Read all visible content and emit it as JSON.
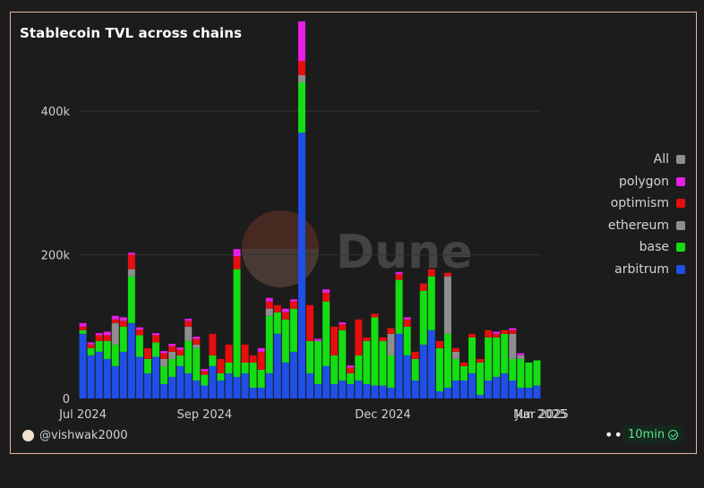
{
  "title": "Stablecoin TVL across chains",
  "author": "@vishwak2000",
  "refresh_label": "10min",
  "more_label": "•••",
  "watermark": "Dune",
  "chart_data": {
    "type": "bar",
    "stacked": true,
    "title": "Stablecoin TVL across chains",
    "ylim": [
      0,
      460000
    ],
    "y_ticks": [
      0,
      200000,
      400000
    ],
    "y_tick_labels": [
      "0",
      "200k",
      "400k"
    ],
    "x_tick_labels": [
      "Jul 2024",
      "Sep 2024",
      "Dec 2024",
      "Mar 2025",
      "Jun 2025"
    ],
    "x_tick_indices": [
      0,
      15,
      37,
      59,
      77
    ],
    "legend_position": "right",
    "legend": [
      "All",
      "polygon",
      "optimism",
      "ethereum",
      "base",
      "arbitrum"
    ],
    "colors": {
      "All": "#8e8e8e",
      "polygon": "#e61ee6",
      "optimism": "#e60e0e",
      "ethereum": "#8e8e8e",
      "base": "#14dd14",
      "arbitrum": "#1f4fe6"
    },
    "series": [
      {
        "name": "arbitrum",
        "values": [
          90000,
          60000,
          65000,
          55000,
          45000,
          65000,
          105000,
          58000,
          35000,
          58000,
          20000,
          30000,
          45000,
          35000,
          25000,
          18000,
          45000,
          25000,
          35000,
          30000,
          35000,
          15000,
          15000,
          35000,
          90000,
          50000,
          65000,
          370000,
          35000,
          20000,
          45000,
          20000,
          25000,
          20000,
          25000,
          20000,
          18000,
          18000,
          15000,
          90000,
          60000,
          25000,
          75000,
          95000,
          10000,
          15000,
          25000,
          25000,
          35000,
          5000,
          25000,
          30000,
          35000,
          25000,
          15000,
          15000,
          18000
        ]
      },
      {
        "name": "base",
        "values": [
          5000,
          10000,
          15000,
          25000,
          30000,
          35000,
          65000,
          30000,
          20000,
          20000,
          25000,
          25000,
          15000,
          45000,
          45000,
          15000,
          15000,
          10000,
          15000,
          150000,
          15000,
          35000,
          25000,
          80000,
          30000,
          60000,
          60000,
          70000,
          45000,
          60000,
          90000,
          40000,
          70000,
          15000,
          35000,
          60000,
          95000,
          62000,
          45000,
          75000,
          40000,
          30000,
          75000,
          75000,
          60000,
          75000,
          30000,
          20000,
          50000,
          45000,
          60000,
          55000,
          55000,
          30000,
          40000,
          35000,
          35000
        ]
      },
      {
        "name": "ethereum",
        "values": [
          0,
          0,
          0,
          0,
          30000,
          0,
          10000,
          0,
          0,
          0,
          10000,
          10000,
          0,
          20000,
          5000,
          0,
          0,
          0,
          0,
          0,
          0,
          0,
          0,
          10000,
          0,
          0,
          0,
          10000,
          0,
          0,
          0,
          0,
          0,
          0,
          0,
          0,
          0,
          0,
          30000,
          0,
          0,
          0,
          0,
          0,
          0,
          80000,
          10000,
          0,
          0,
          0,
          0,
          0,
          0,
          35000,
          5000,
          0,
          0
        ]
      },
      {
        "name": "optimism",
        "values": [
          5000,
          5000,
          8000,
          8000,
          5000,
          8000,
          20000,
          8000,
          15000,
          10000,
          8000,
          8000,
          8000,
          8000,
          8000,
          5000,
          30000,
          20000,
          25000,
          18000,
          25000,
          10000,
          25000,
          10000,
          10000,
          10000,
          10000,
          20000,
          50000,
          0,
          12000,
          40000,
          8000,
          8000,
          50000,
          5000,
          5000,
          5000,
          8000,
          8000,
          10000,
          10000,
          10000,
          10000,
          10000,
          5000,
          5000,
          5000,
          5000,
          5000,
          10000,
          5000,
          5000,
          5000,
          0,
          0,
          0
        ]
      },
      {
        "name": "polygon",
        "values": [
          5000,
          3000,
          3000,
          5000,
          5000,
          5000,
          3000,
          3000,
          0,
          3000,
          3000,
          3000,
          3000,
          3000,
          3000,
          3000,
          0,
          0,
          0,
          10000,
          0,
          0,
          5000,
          5000,
          0,
          5000,
          3000,
          55000,
          0,
          3000,
          5000,
          0,
          3000,
          3000,
          0,
          0,
          0,
          0,
          0,
          3000,
          3000,
          0,
          0,
          0,
          0,
          0,
          0,
          0,
          0,
          0,
          0,
          3000,
          0,
          3000,
          3000,
          0,
          0
        ]
      }
    ]
  }
}
